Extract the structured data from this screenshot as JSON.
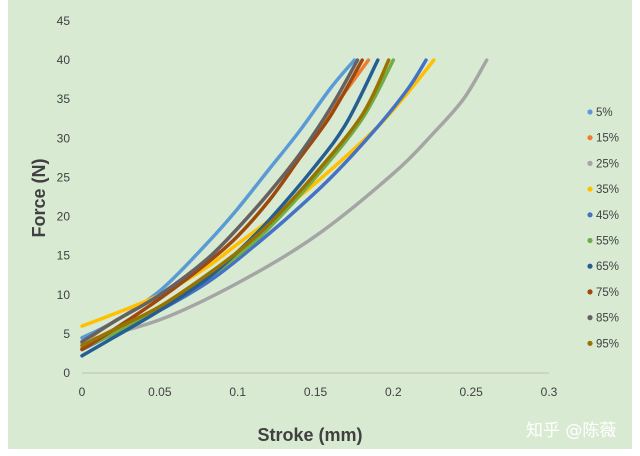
{
  "chart_data": {
    "type": "line",
    "title": "",
    "xlabel": "Stroke (mm)",
    "ylabel": "Force (N)",
    "xlim": [
      0,
      0.3
    ],
    "ylim": [
      0,
      45
    ],
    "xticks": [
      0,
      0.05,
      0.1,
      0.15,
      0.2,
      0.25,
      0.3
    ],
    "yticks": [
      0,
      5,
      10,
      15,
      20,
      25,
      30,
      35,
      40,
      45
    ],
    "xtick_labels": [
      "0",
      "0.05",
      "0.1",
      "0.15",
      "0.2",
      "0.25",
      "0.3"
    ],
    "ytick_labels": [
      "0",
      "5",
      "10",
      "15",
      "20",
      "25",
      "30",
      "35",
      "40",
      "45"
    ],
    "grid": false,
    "legend_position": "right",
    "series": [
      {
        "name": "5%",
        "color": "#5b9bd5",
        "x": [
          0,
          0.02,
          0.05,
          0.08,
          0.1,
          0.12,
          0.14,
          0.16,
          0.175
        ],
        "y": [
          4.5,
          6.5,
          10.5,
          16.5,
          21,
          26,
          31,
          36.5,
          40
        ]
      },
      {
        "name": "15%",
        "color": "#ed7d31",
        "x": [
          0,
          0.02,
          0.05,
          0.08,
          0.1,
          0.12,
          0.14,
          0.16,
          0.184
        ],
        "y": [
          3.8,
          6.5,
          10,
          14.5,
          18.5,
          23,
          28,
          33.5,
          40
        ]
      },
      {
        "name": "25%",
        "color": "#a5a5a5",
        "x": [
          0,
          0.05,
          0.1,
          0.15,
          0.2,
          0.225,
          0.245,
          0.26
        ],
        "y": [
          4,
          6.8,
          11.5,
          17.5,
          25.5,
          30.5,
          35,
          40
        ]
      },
      {
        "name": "35%",
        "color": "#ffc000",
        "x": [
          0,
          0.02,
          0.05,
          0.08,
          0.1,
          0.13,
          0.16,
          0.19,
          0.21,
          0.226
        ],
        "y": [
          6,
          7.5,
          10,
          13.5,
          16.5,
          21,
          26,
          31.5,
          36,
          40
        ]
      },
      {
        "name": "45%",
        "color": "#4472c4",
        "x": [
          0,
          0.02,
          0.05,
          0.08,
          0.1,
          0.13,
          0.16,
          0.19,
          0.21,
          0.221
        ],
        "y": [
          3,
          5,
          8,
          11.5,
          14.5,
          19.5,
          25,
          31.5,
          36.5,
          40
        ]
      },
      {
        "name": "55%",
        "color": "#70ad47",
        "x": [
          0,
          0.02,
          0.05,
          0.08,
          0.1,
          0.12,
          0.15,
          0.18,
          0.2
        ],
        "y": [
          3.2,
          5,
          8.2,
          12,
          15,
          18.5,
          25,
          32.5,
          40
        ]
      },
      {
        "name": "65%",
        "color": "#255e91",
        "x": [
          0,
          0.02,
          0.05,
          0.08,
          0.1,
          0.12,
          0.15,
          0.17,
          0.19
        ],
        "y": [
          2.2,
          4.5,
          8,
          12,
          15.5,
          19.5,
          26.5,
          32,
          40
        ]
      },
      {
        "name": "75%",
        "color": "#9e480e",
        "x": [
          0,
          0.02,
          0.05,
          0.08,
          0.1,
          0.12,
          0.14,
          0.16,
          0.18
        ],
        "y": [
          3,
          5.5,
          9.5,
          14,
          17.5,
          22,
          27.5,
          33,
          40
        ]
      },
      {
        "name": "85%",
        "color": "#636363",
        "x": [
          0,
          0.02,
          0.05,
          0.08,
          0.1,
          0.12,
          0.14,
          0.16,
          0.177
        ],
        "y": [
          4,
          6.5,
          10,
          14.5,
          18.5,
          23,
          28,
          34,
          40
        ]
      },
      {
        "name": "95%",
        "color": "#997300",
        "x": [
          0,
          0.02,
          0.05,
          0.08,
          0.1,
          0.12,
          0.15,
          0.18,
          0.197
        ],
        "y": [
          3.5,
          5.5,
          8.5,
          12.5,
          15.5,
          19,
          25.5,
          33,
          40
        ]
      }
    ]
  },
  "watermark": {
    "text": "知乎 @陈薇"
  }
}
